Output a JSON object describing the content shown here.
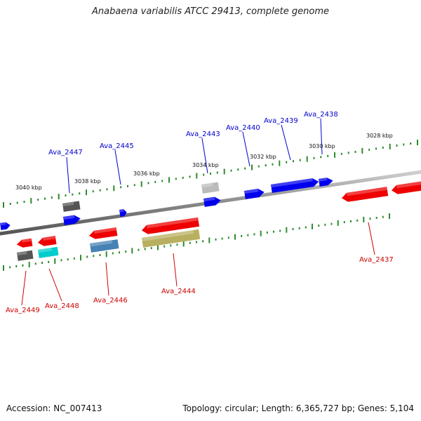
{
  "title": "Anabaena variabilis ATCC 29413, complete genome",
  "footer": {
    "accession": "Accession: NC_007413",
    "summary": "Topology: circular; Length: 6,365,727 bp; Genes: 5,104"
  },
  "colors": {
    "backbone": "#8a8a8a",
    "tick": "#2e8b2e",
    "top_label": "#0000cc",
    "bottom_label": "#cc0000"
  },
  "scale_labels": [
    "3040 kbp",
    "3038 kbp",
    "3036 kbp",
    "3034 kbp",
    "3032 kbp",
    "3030 kbp",
    "3028 kbp"
  ],
  "gene_labels": {
    "top": [
      "Ava_2447",
      "Ava_2445",
      "Ava_2443",
      "Ava_2440",
      "Ava_2439",
      "Ava_2438"
    ],
    "bottom": [
      "Ava_2449",
      "Ava_2448",
      "Ava_2446",
      "Ava_2444",
      "Ava_2437"
    ]
  }
}
